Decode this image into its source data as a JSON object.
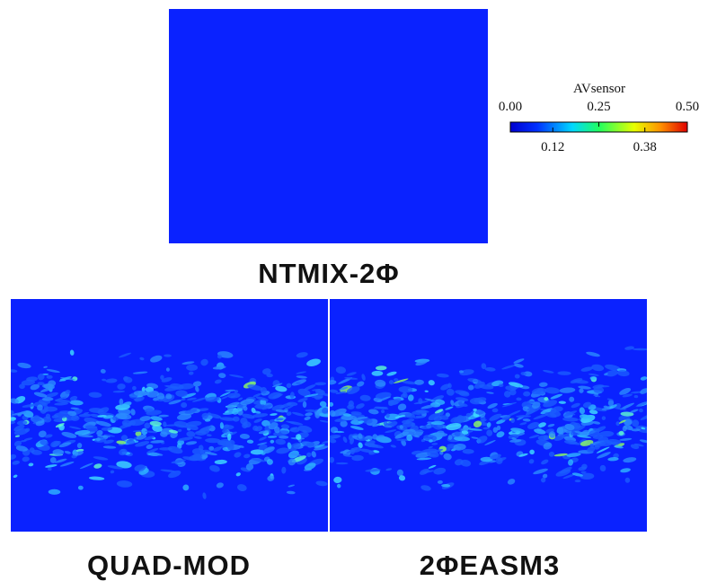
{
  "panels": [
    {
      "label": "NTMIX-2Φ"
    },
    {
      "label": "QUAD-MOD"
    },
    {
      "label": "2ΦEASM3"
    }
  ],
  "colorbar": {
    "title": "AVsensor",
    "range": [
      0,
      0.5
    ],
    "ticks_top": [
      {
        "value": 0,
        "label": "0.00"
      },
      {
        "value": 0.25,
        "label": "0.25"
      },
      {
        "value": 0.5,
        "label": "0.50"
      }
    ],
    "ticks_bottom": [
      {
        "value": 0.12,
        "label": "0.12"
      },
      {
        "value": 0.38,
        "label": "0.38"
      }
    ]
  }
}
